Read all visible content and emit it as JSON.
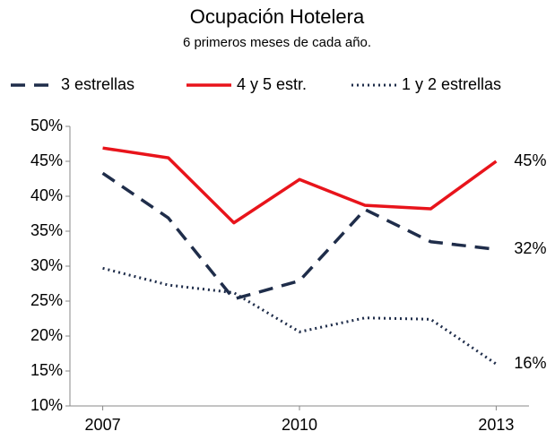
{
  "chart_data": {
    "type": "line",
    "title": "Ocupación Hotelera",
    "subtitle": "6 primeros meses de cada año.",
    "x": [
      2007,
      2008,
      2009,
      2010,
      2011,
      2012,
      2013
    ],
    "xlim": [
      2006.5,
      2013.5
    ],
    "xticks": [
      2007,
      2010,
      2013
    ],
    "ylim": [
      10,
      50
    ],
    "yticks": [
      {
        "value": 10,
        "label": "10%"
      },
      {
        "value": 15,
        "label": "15%"
      },
      {
        "value": 20,
        "label": "20%"
      },
      {
        "value": 25,
        "label": "25%"
      },
      {
        "value": 30,
        "label": "30%"
      },
      {
        "value": 35,
        "label": "35%"
      },
      {
        "value": 40,
        "label": "40%"
      },
      {
        "value": 45,
        "label": "45%"
      },
      {
        "value": 50,
        "label": "50%"
      }
    ],
    "legend": "top",
    "series": [
      {
        "name": "3 estrellas",
        "color": "#1f2d4a",
        "dash": "dashed",
        "values": [
          43.3,
          36.9,
          25.3,
          27.9,
          38.1,
          33.5,
          32.4
        ],
        "value_labels": [
          null,
          null,
          null,
          null,
          null,
          null,
          "32%"
        ]
      },
      {
        "name": "4 y 5 estr.",
        "color": "#e8141b",
        "dash": "solid",
        "values": [
          46.9,
          45.5,
          36.2,
          42.4,
          38.7,
          38.2,
          45.0
        ],
        "value_labels": [
          null,
          null,
          null,
          null,
          null,
          null,
          "45%"
        ]
      },
      {
        "name": "1 y 2 estrellas",
        "color": "#1f2d4a",
        "dash": "dotted",
        "values": [
          29.7,
          27.3,
          26.2,
          20.6,
          22.6,
          22.4,
          16.0
        ],
        "value_labels": [
          null,
          null,
          null,
          null,
          null,
          null,
          "16%"
        ]
      }
    ]
  }
}
